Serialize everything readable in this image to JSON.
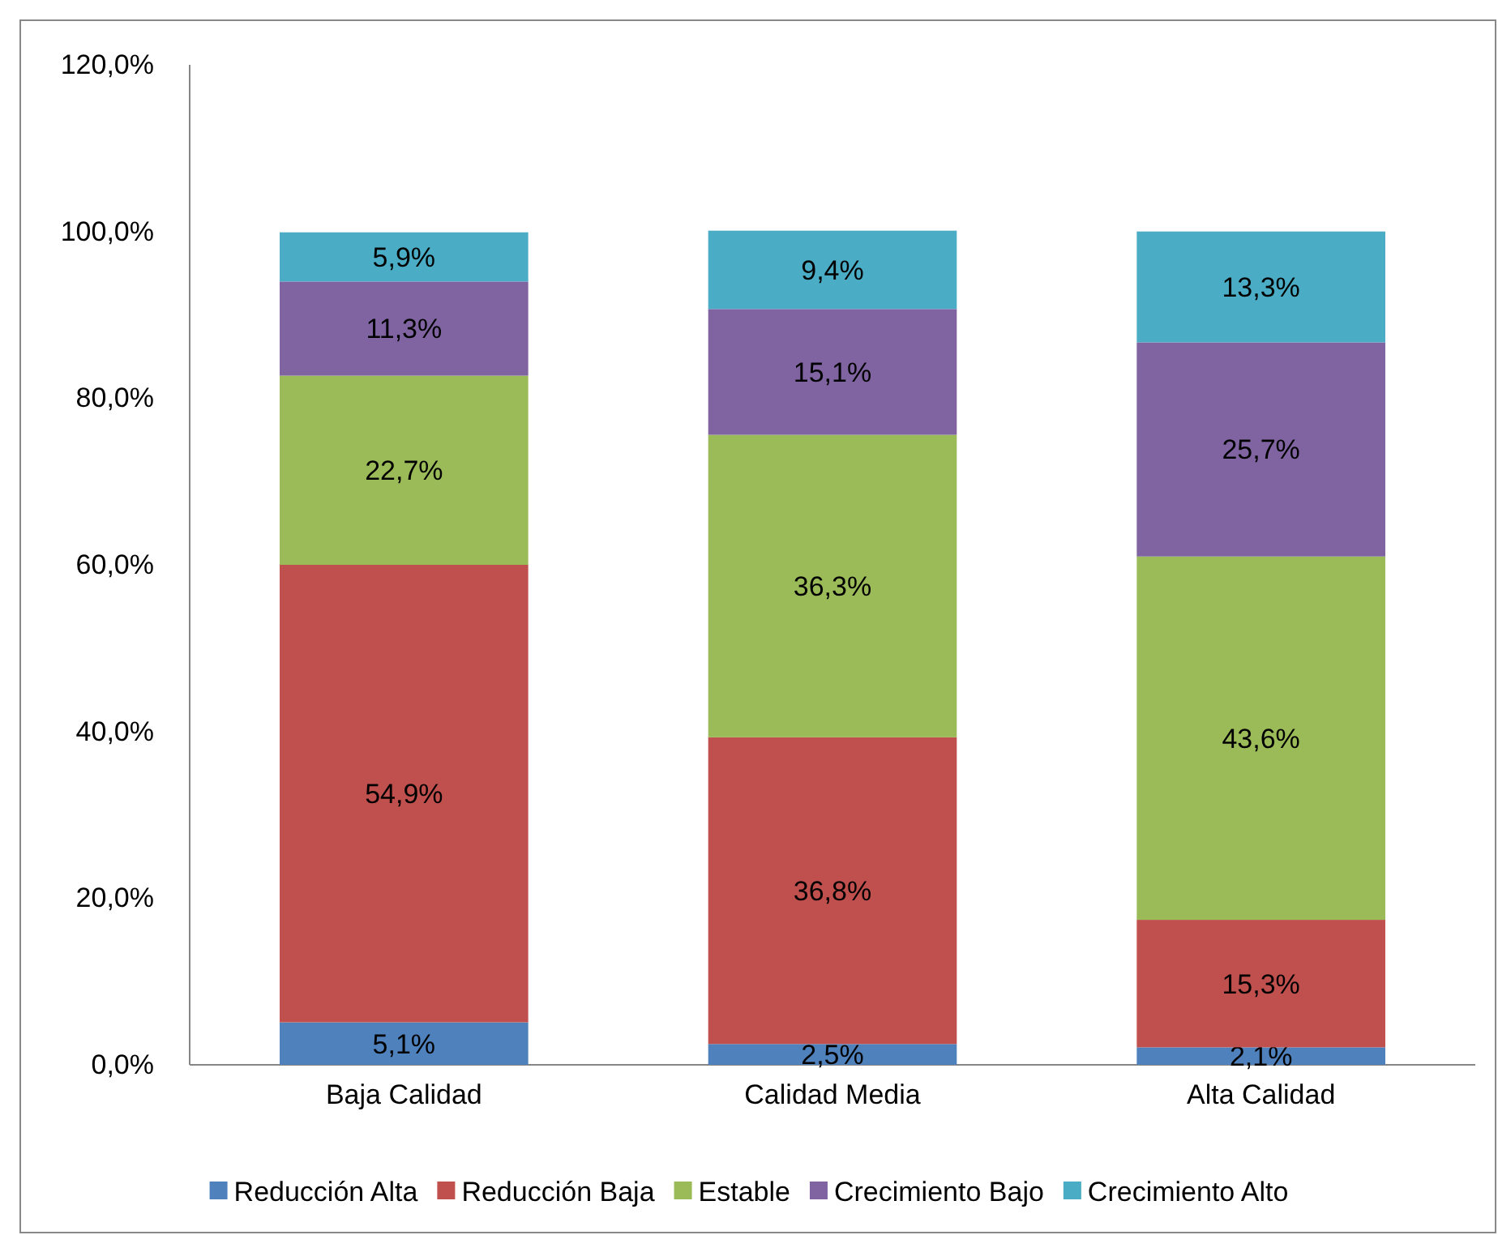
{
  "chart_data": {
    "type": "bar",
    "stacked": true,
    "categories": [
      "Baja Calidad",
      "Calidad Media",
      "Alta Calidad"
    ],
    "series": [
      {
        "name": "Reducción Alta",
        "color": "#4f81bd",
        "values": [
          5.1,
          2.5,
          2.1
        ],
        "value_labels": [
          "5,1%",
          "2,5%",
          "2,1%"
        ]
      },
      {
        "name": "Reducción Baja",
        "color": "#c0504d",
        "values": [
          54.9,
          36.8,
          15.3
        ],
        "value_labels": [
          "54,9%",
          "36,8%",
          "15,3%"
        ]
      },
      {
        "name": "Estable",
        "color": "#9bbb59",
        "values": [
          22.7,
          36.3,
          43.6
        ],
        "value_labels": [
          "22,7%",
          "36,3%",
          "43,6%"
        ]
      },
      {
        "name": "Crecimiento Bajo",
        "color": "#8064a2",
        "values": [
          11.3,
          15.1,
          25.7
        ],
        "value_labels": [
          "11,3%",
          "15,1%",
          "25,7%"
        ]
      },
      {
        "name": "Crecimiento Alto",
        "color": "#4bacc6",
        "values": [
          5.9,
          9.4,
          13.3
        ],
        "value_labels": [
          "5,9%",
          "9,4%",
          "13,3%"
        ]
      }
    ],
    "ylim": [
      0,
      120
    ],
    "yticks": [
      {
        "value": 0,
        "label": "0,0%"
      },
      {
        "value": 20,
        "label": "20,0%"
      },
      {
        "value": 40,
        "label": "40,0%"
      },
      {
        "value": 60,
        "label": "60,0%"
      },
      {
        "value": 80,
        "label": "80,0%"
      },
      {
        "value": 100,
        "label": "100,0%"
      },
      {
        "value": 120,
        "label": "120,0%"
      }
    ],
    "grid": false,
    "legend": "bottom"
  }
}
